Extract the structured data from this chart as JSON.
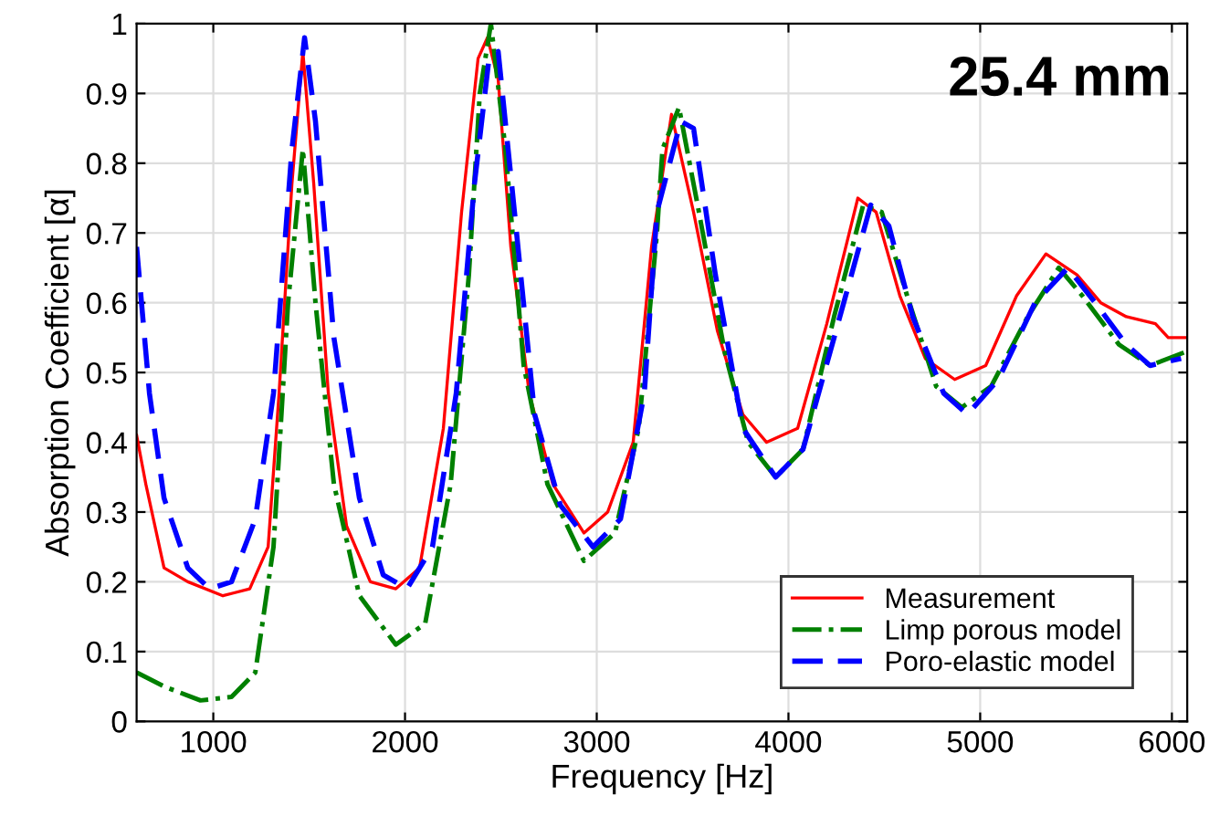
{
  "chart_data": {
    "type": "line",
    "xlabel": "Frequency [Hz]",
    "ylabel": "Absorption Coefficient [α]",
    "annotations": [
      "25.4 mm"
    ],
    "xlim": [
      600,
      6080
    ],
    "ylim": [
      0,
      1
    ],
    "xticks": [
      1000,
      2000,
      3000,
      4000,
      5000,
      6000
    ],
    "yticks": [
      0,
      0.1,
      0.2,
      0.3,
      0.4,
      0.5,
      0.6,
      0.7,
      0.8,
      0.9,
      1
    ],
    "grid": true,
    "legend": "bottom right",
    "series": [
      {
        "name": "Measurement",
        "color": "#ff0000",
        "line_style": "solid",
        "x": [
          600,
          648,
          743,
          867,
          1050,
          1190,
          1286,
          1343,
          1410,
          1467,
          1524,
          1600,
          1695,
          1819,
          1952,
          2076,
          2200,
          2295,
          2381,
          2430,
          2486,
          2552,
          2648,
          2771,
          2933,
          3057,
          3190,
          3286,
          3390,
          3505,
          3629,
          3762,
          3886,
          4048,
          4200,
          4362,
          4457,
          4581,
          4714,
          4867,
          5029,
          5190,
          5343,
          5505,
          5629,
          5762,
          5914,
          5981,
          6076
        ],
        "values": [
          0.41,
          0.34,
          0.22,
          0.2,
          0.18,
          0.19,
          0.25,
          0.47,
          0.77,
          0.96,
          0.77,
          0.47,
          0.28,
          0.2,
          0.19,
          0.22,
          0.42,
          0.73,
          0.95,
          0.98,
          0.92,
          0.68,
          0.47,
          0.34,
          0.27,
          0.3,
          0.4,
          0.68,
          0.87,
          0.73,
          0.56,
          0.44,
          0.4,
          0.42,
          0.57,
          0.75,
          0.73,
          0.61,
          0.52,
          0.49,
          0.51,
          0.61,
          0.67,
          0.64,
          0.6,
          0.58,
          0.57,
          0.55,
          0.55
        ]
      },
      {
        "name": "Limp porous model",
        "color": "#008000",
        "line_style": "dashdot",
        "x": [
          600,
          743,
          933,
          1095,
          1219,
          1314,
          1390,
          1467,
          1533,
          1629,
          1762,
          1952,
          2105,
          2238,
          2333,
          2390,
          2448,
          2524,
          2619,
          2743,
          2933,
          3095,
          3219,
          3314,
          3343,
          3429,
          3533,
          3667,
          3790,
          3933,
          4076,
          4238,
          4390,
          4486,
          4619,
          4771,
          4905,
          5057,
          5248,
          5410,
          5533,
          5724,
          5886,
          6076
        ],
        "values": [
          0.07,
          0.05,
          0.03,
          0.035,
          0.07,
          0.25,
          0.6,
          0.82,
          0.6,
          0.34,
          0.18,
          0.11,
          0.14,
          0.34,
          0.64,
          0.9,
          1.0,
          0.82,
          0.51,
          0.34,
          0.23,
          0.27,
          0.42,
          0.7,
          0.82,
          0.88,
          0.73,
          0.53,
          0.4,
          0.35,
          0.39,
          0.58,
          0.74,
          0.73,
          0.61,
          0.48,
          0.45,
          0.48,
          0.58,
          0.65,
          0.61,
          0.54,
          0.51,
          0.53
        ]
      },
      {
        "name": "Poro-elastic model",
        "color": "#0000ff",
        "line_style": "dashed",
        "x": [
          600,
          667,
          743,
          867,
          981,
          1095,
          1219,
          1314,
          1410,
          1476,
          1533,
          1629,
          1762,
          1886,
          2010,
          2143,
          2267,
          2362,
          2438,
          2486,
          2571,
          2676,
          2810,
          2981,
          3124,
          3248,
          3314,
          3438,
          3505,
          3619,
          3762,
          3933,
          4076,
          4238,
          4429,
          4524,
          4648,
          4810,
          4933,
          5095,
          5286,
          5457,
          5600,
          5762,
          5886,
          6048
        ],
        "values": [
          0.68,
          0.47,
          0.32,
          0.22,
          0.19,
          0.2,
          0.29,
          0.47,
          0.82,
          0.98,
          0.86,
          0.55,
          0.32,
          0.21,
          0.19,
          0.25,
          0.47,
          0.77,
          0.95,
          0.96,
          0.73,
          0.44,
          0.31,
          0.25,
          0.29,
          0.47,
          0.73,
          0.86,
          0.85,
          0.64,
          0.42,
          0.35,
          0.39,
          0.55,
          0.74,
          0.71,
          0.58,
          0.47,
          0.44,
          0.49,
          0.6,
          0.65,
          0.6,
          0.54,
          0.51,
          0.52
        ]
      }
    ]
  }
}
